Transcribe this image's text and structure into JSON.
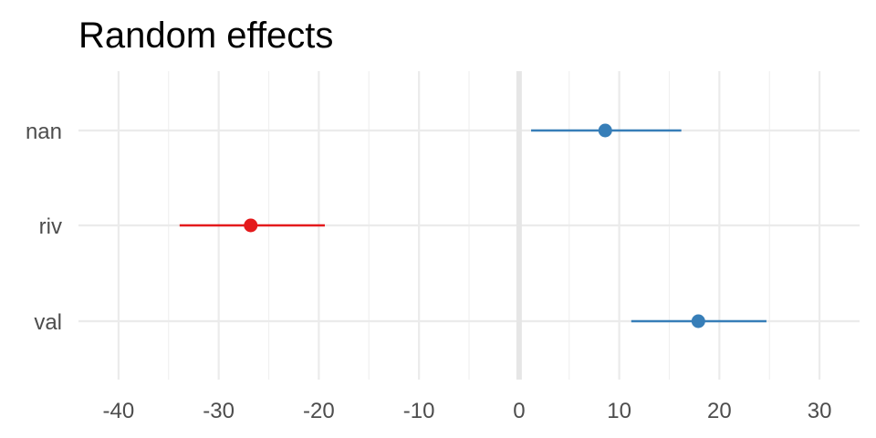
{
  "chart_data": {
    "type": "forest",
    "title": "Random effects",
    "xlabel": "",
    "ylabel": "",
    "xlim": [
      -44,
      34
    ],
    "x_ticks": [
      -40,
      -30,
      -20,
      -10,
      0,
      10,
      20,
      30
    ],
    "x_tick_labels": [
      "-40",
      "-30",
      "-20",
      "-10",
      "0",
      "10",
      "20",
      "30"
    ],
    "categories": [
      "nan",
      "riv",
      "val"
    ],
    "points": [
      {
        "label": "nan",
        "estimate": 8.6,
        "lower": 1.2,
        "upper": 16.2,
        "color": "#377eb8"
      },
      {
        "label": "riv",
        "estimate": -26.8,
        "lower": -33.9,
        "upper": -19.4,
        "color": "#e41a1c"
      },
      {
        "label": "val",
        "estimate": 17.9,
        "lower": 11.2,
        "upper": 24.7,
        "color": "#377eb8"
      }
    ],
    "grid": true,
    "zero_line": true
  }
}
